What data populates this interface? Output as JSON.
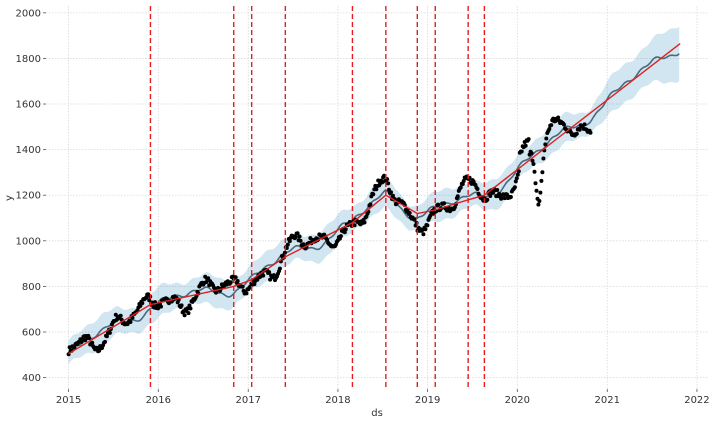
{
  "chart_data": {
    "type": "line",
    "library_style": "prophet-forecast",
    "xlabel": "ds",
    "ylabel": "y",
    "xlim": [
      "2014-10-01",
      "2022-02-15"
    ],
    "ylim": [
      350,
      2030
    ],
    "x_tick_labels": [
      "2015",
      "2016",
      "2017",
      "2018",
      "2019",
      "2020",
      "2021",
      "2022"
    ],
    "x_ticks": [
      "2015-01-01",
      "2016-01-01",
      "2017-01-01",
      "2018-01-01",
      "2019-01-01",
      "2020-01-01",
      "2021-01-01",
      "2022-01-01"
    ],
    "y_ticks": [
      400,
      600,
      800,
      1000,
      1200,
      1400,
      1600,
      1800,
      2000
    ],
    "y_tick_labels": [
      "400",
      "600",
      "800",
      "1000",
      "1200",
      "1400",
      "1600",
      "1800",
      "2000"
    ],
    "grid": true,
    "history_end": "2020-10-25",
    "trend": {
      "x": [
        "2015-01-01",
        "2015-11-30",
        "2016-11-03",
        "2017-01-15",
        "2017-06-01",
        "2018-03-01",
        "2018-07-15",
        "2018-11-20",
        "2019-02-01",
        "2019-06-15",
        "2019-08-20",
        "2020-06-01",
        "2021-10-25"
      ],
      "y": [
        505,
        720,
        800,
        830,
        930,
        1080,
        1200,
        1120,
        1135,
        1180,
        1200,
        1440,
        1865
      ]
    },
    "changepoints": [
      "2015-11-30",
      "2016-11-03",
      "2017-01-15",
      "2017-06-01",
      "2018-03-01",
      "2018-07-15",
      "2018-11-20",
      "2019-02-01",
      "2019-06-15",
      "2019-08-20"
    ],
    "series": [
      {
        "role": "actual",
        "color": "#000000"
      },
      {
        "role": "forecast",
        "color": "#0072B2"
      },
      {
        "role": "uncertainty",
        "color": "#0072B2"
      },
      {
        "role": "trend",
        "color": "#e02020"
      },
      {
        "role": "changepoint",
        "color": "#e02020"
      }
    ]
  }
}
